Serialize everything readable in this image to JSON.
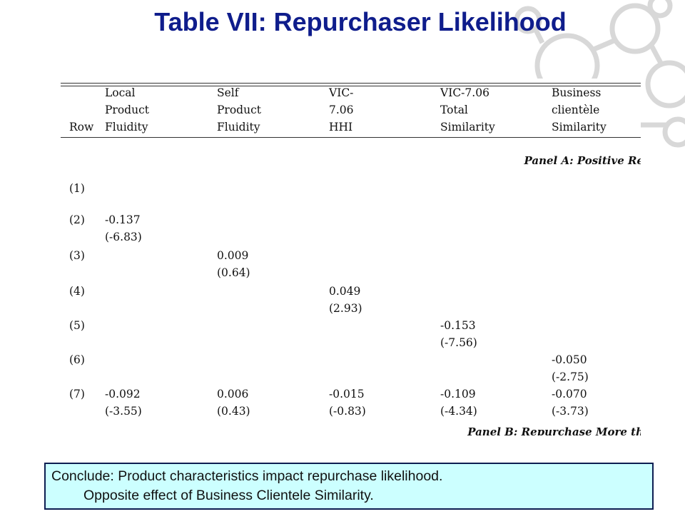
{
  "slide": {
    "title": "Table VII:  Repurchaser Likelihood"
  },
  "table": {
    "headers": [
      [
        "",
        "",
        "Row"
      ],
      [
        "Local",
        "Product",
        "Fluidity"
      ],
      [
        "Self",
        "Product",
        "Fluidity"
      ],
      [
        "VIC-",
        "7.06",
        "HHI"
      ],
      [
        "VIC-7.06",
        "Total",
        "Similarity"
      ],
      [
        "Business",
        "clientèle",
        "Similarity"
      ]
    ],
    "panel_a_label": "Panel A: Positive Re",
    "panel_b_label": "Panel B: Repurchase More th",
    "rows": [
      {
        "label": "(1)",
        "coef": [
          "",
          "",
          "",
          "",
          ""
        ],
        "tstat": [
          "",
          "",
          "",
          "",
          ""
        ]
      },
      {
        "label": "(2)",
        "coef": [
          "-0.137",
          "",
          "",
          "",
          ""
        ],
        "tstat": [
          "(-6.83)",
          "",
          "",
          "",
          ""
        ]
      },
      {
        "label": "(3)",
        "coef": [
          "",
          "0.009",
          "",
          "",
          ""
        ],
        "tstat": [
          "",
          "(0.64)",
          "",
          "",
          ""
        ]
      },
      {
        "label": "(4)",
        "coef": [
          "",
          "",
          "0.049",
          "",
          ""
        ],
        "tstat": [
          "",
          "",
          "(2.93)",
          "",
          ""
        ]
      },
      {
        "label": "(5)",
        "coef": [
          "",
          "",
          "",
          "-0.153",
          ""
        ],
        "tstat": [
          "",
          "",
          "",
          "(-7.56)",
          ""
        ]
      },
      {
        "label": "(6)",
        "coef": [
          "",
          "",
          "",
          "",
          "-0.050"
        ],
        "tstat": [
          "",
          "",
          "",
          "",
          "(-2.75)"
        ]
      },
      {
        "label": "(7)",
        "coef": [
          "-0.092",
          "0.006",
          "-0.015",
          "-0.109",
          "-0.070"
        ],
        "tstat": [
          "(-3.55)",
          "(0.43)",
          "(-0.83)",
          "(-4.34)",
          "(-3.73)"
        ]
      }
    ]
  },
  "conclusion": {
    "line1": "Conclude:  Product characteristics impact repurchase likelihood.",
    "line2": "Opposite effect of Business Clientele Similarity."
  }
}
